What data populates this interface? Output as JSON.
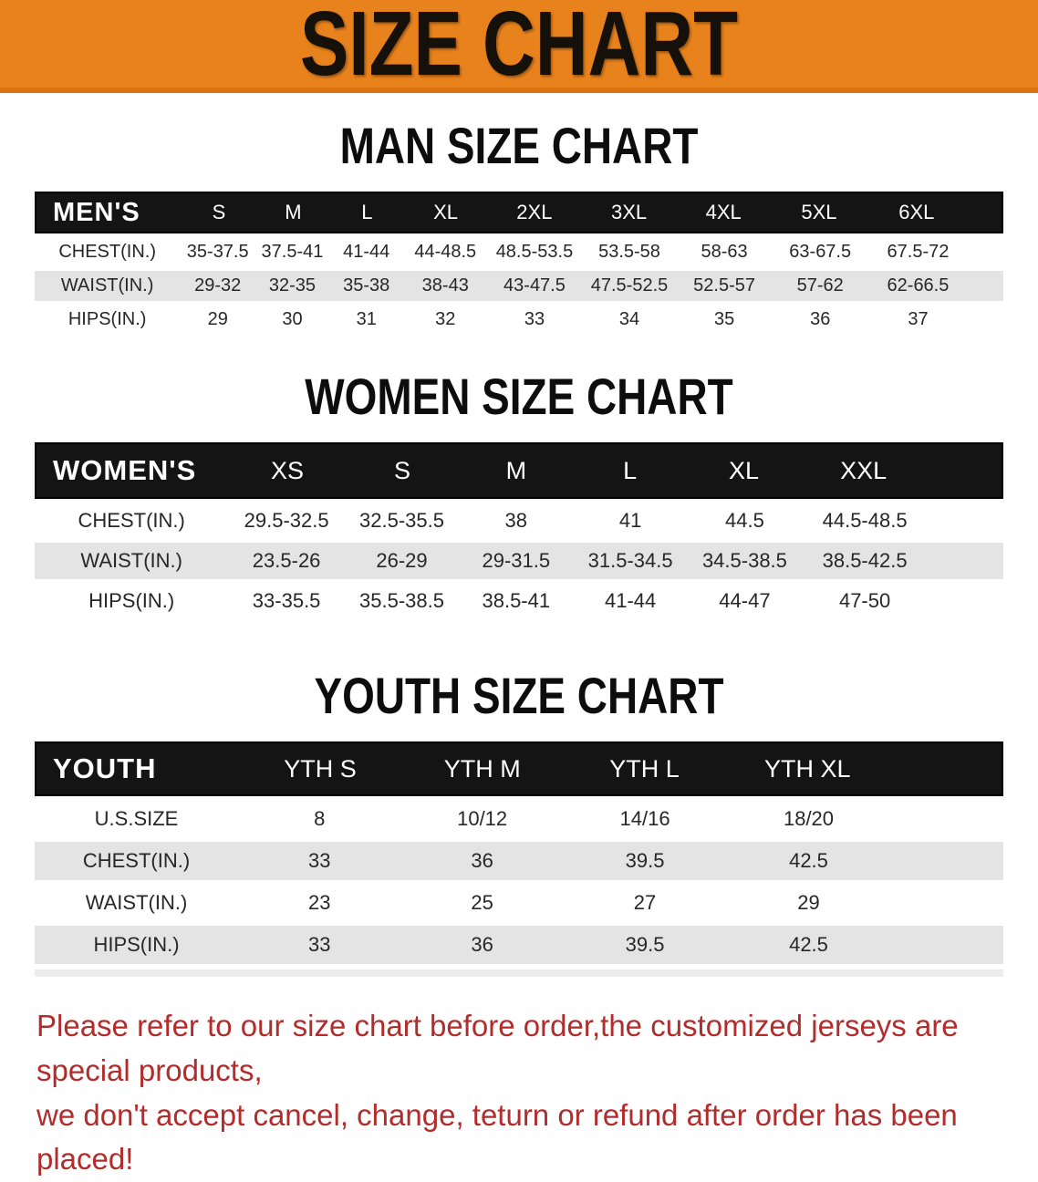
{
  "banner": {
    "title": "SIZE CHART",
    "bg_color": "#E8821C",
    "text_color": "#16100a"
  },
  "sections": [
    {
      "title": "MAN SIZE CHART",
      "header_label": "MEN'S",
      "sizes": [
        "S",
        "M",
        "L",
        "XL",
        "2XL",
        "3XL",
        "4XL",
        "5XL",
        "6XL"
      ],
      "rows": [
        {
          "label": "CHEST(IN.)",
          "values": [
            "35-37.5",
            "37.5-41",
            "41-44",
            "44-48.5",
            "48.5-53.5",
            "53.5-58",
            "58-63",
            "63-67.5",
            "67.5-72"
          ]
        },
        {
          "label": "WAIST(IN.)",
          "values": [
            "29-32",
            "32-35",
            "35-38",
            "38-43",
            "43-47.5",
            "47.5-52.5",
            "52.5-57",
            "57-62",
            "62-66.5"
          ]
        },
        {
          "label": "HIPS(IN.)",
          "values": [
            "29",
            "30",
            "31",
            "32",
            "33",
            "34",
            "35",
            "36",
            "37"
          ]
        }
      ]
    },
    {
      "title": "WOMEN SIZE CHART",
      "header_label": "WOMEN'S",
      "sizes": [
        "XS",
        "S",
        "M",
        "L",
        "XL",
        "XXL"
      ],
      "rows": [
        {
          "label": "CHEST(IN.)",
          "values": [
            "29.5-32.5",
            "32.5-35.5",
            "38",
            "41",
            "44.5",
            "44.5-48.5"
          ]
        },
        {
          "label": "WAIST(IN.)",
          "values": [
            "23.5-26",
            "26-29",
            "29-31.5",
            "31.5-34.5",
            "34.5-38.5",
            "38.5-42.5"
          ]
        },
        {
          "label": "HIPS(IN.)",
          "values": [
            "33-35.5",
            "35.5-38.5",
            "38.5-41",
            "41-44",
            "44-47",
            "47-50"
          ]
        }
      ]
    },
    {
      "title": "YOUTH SIZE CHART",
      "header_label": "YOUTH",
      "sizes": [
        "YTH S",
        "YTH M",
        "YTH L",
        "YTH XL"
      ],
      "rows": [
        {
          "label": "U.S.SIZE",
          "values": [
            "8",
            "10/12",
            "14/16",
            "18/20"
          ]
        },
        {
          "label": "CHEST(IN.)",
          "values": [
            "33",
            "36",
            "39.5",
            "42.5"
          ]
        },
        {
          "label": "WAIST(IN.)",
          "values": [
            "23",
            "25",
            "27",
            "29"
          ]
        },
        {
          "label": "HIPS(IN.)",
          "values": [
            "33",
            "36",
            "39.5",
            "42.5"
          ]
        }
      ]
    }
  ],
  "footer": {
    "lines": [
      "Please refer to our size chart before order,the customized jerseys are special products,",
      "we don't accept cancel, change, teturn or refund after order has been placed!"
    ],
    "color": "#B22C2C"
  },
  "colors": {
    "banner_orange": "#E8821C",
    "banner_orange_dark": "#d8730f",
    "table_header_black": "#141414",
    "row_gray": "#E4E4E4",
    "row_white": "#ffffff",
    "text_dark": "#272727",
    "note_red": "#B22C2C"
  }
}
